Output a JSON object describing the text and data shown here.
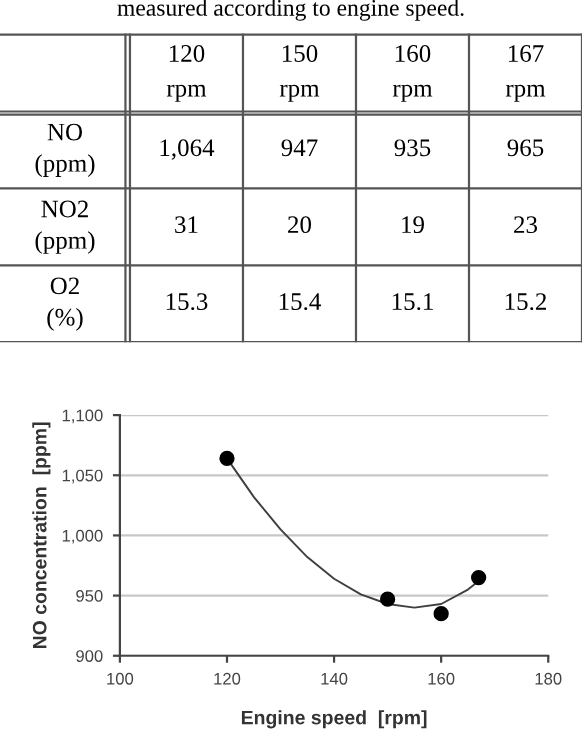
{
  "chart_data": [
    {
      "type": "other",
      "annotations": [
        "measured according to engine speed."
      ],
      "categories": [
        "120\nrpm",
        "150\nrpm",
        "160\nrpm",
        "167\nrpm"
      ],
      "y_categories": [
        "NO\n(ppm)",
        "NO2\n(ppm)",
        "O2\n(%)"
      ],
      "cell_labels": [
        [
          "1,064",
          "947",
          "935",
          "965"
        ],
        [
          "31",
          "20",
          "19",
          "23"
        ],
        [
          "15.3",
          "15.4",
          "15.1",
          "15.2"
        ]
      ]
    },
    {
      "type": "scatter",
      "xlabel": "Engine speed  [rpm]",
      "ylabel": "NO concentration  [ppm]",
      "xlim": [
        100,
        180
      ],
      "xticks": [
        100,
        120,
        140,
        160,
        180
      ],
      "ylim": [
        900,
        1100
      ],
      "yticks": [
        {
          "value": 900,
          "label": "900"
        },
        {
          "value": 950,
          "label": "950"
        },
        {
          "value": 1000,
          "label": "1,000"
        },
        {
          "value": 1050,
          "label": "1,050"
        },
        {
          "value": 1100,
          "label": "1,100"
        }
      ],
      "grid": "y",
      "series": [
        {
          "type": "line",
          "color": "#404040",
          "marker": "none",
          "line_style": "solid",
          "x": [
            120,
            125,
            130,
            135,
            140,
            145,
            150,
            155,
            160,
            165,
            167
          ],
          "values": [
            1064,
            1032,
            1005,
            982,
            964,
            951,
            943,
            940,
            943,
            955,
            962
          ]
        },
        {
          "type": "scatter",
          "color": "#000000",
          "marker": "circle",
          "x": [
            120,
            150,
            160,
            167
          ],
          "values": [
            1064,
            947,
            935,
            965
          ]
        }
      ]
    }
  ]
}
